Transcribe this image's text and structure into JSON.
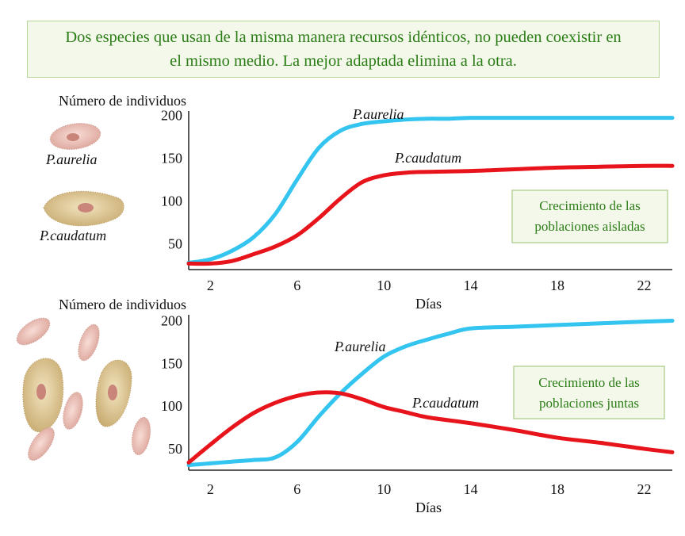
{
  "banner": {
    "line1": "Dos especies que usan de la misma manera recursos idénticos, no pueden coexistir en",
    "line2": "el mismo medio. La mejor adaptada elimina a la otra."
  },
  "colors": {
    "aurelia": "#33c4f0",
    "caudatum": "#e8141c",
    "frame": "#222222"
  },
  "illustrations": {
    "top_species": [
      "P.aurelia",
      "P.caudatum"
    ]
  },
  "chart_data": [
    {
      "type": "line",
      "ylabel": "Número de individuos",
      "xlabel": "Días",
      "x_ticks": [
        2,
        6,
        10,
        14,
        18,
        22
      ],
      "y_ticks": [
        50,
        100,
        150,
        200
      ],
      "xlim": [
        1,
        23.3
      ],
      "ylim": [
        20,
        205
      ],
      "legend_box": [
        "Crecimiento de las",
        "poblaciones aisladas"
      ],
      "series": [
        {
          "name": "P.aurelia",
          "x": [
            1,
            2,
            3,
            4,
            5,
            6,
            7,
            8,
            9,
            10,
            11,
            12,
            13,
            14,
            16,
            18,
            20,
            22,
            23.3
          ],
          "y": [
            28,
            32,
            42,
            58,
            85,
            125,
            162,
            182,
            190,
            193,
            195,
            196,
            196,
            197,
            197,
            197,
            197,
            197,
            197
          ]
        },
        {
          "name": "P.caudatum",
          "x": [
            1,
            2,
            3,
            4,
            5,
            6,
            7,
            8,
            9,
            10,
            11,
            12,
            14,
            16,
            18,
            20,
            22,
            23.3
          ],
          "y": [
            27,
            27,
            30,
            38,
            47,
            60,
            80,
            103,
            122,
            130,
            133,
            134,
            135,
            137,
            139,
            140,
            141,
            141
          ]
        }
      ]
    },
    {
      "type": "line",
      "ylabel": "Número de individuos",
      "xlabel": "Días",
      "x_ticks": [
        2,
        6,
        10,
        14,
        18,
        22
      ],
      "y_ticks": [
        50,
        100,
        150,
        200
      ],
      "xlim": [
        1,
        23.3
      ],
      "ylim": [
        25,
        207
      ],
      "legend_box": [
        "Crecimiento de las",
        "poblaciones juntas"
      ],
      "series": [
        {
          "name": "P.aurelia",
          "x": [
            1,
            2,
            3,
            4,
            5,
            6,
            7,
            8,
            9,
            10,
            11,
            12,
            13,
            14,
            16,
            18,
            20,
            22,
            23.3
          ],
          "y": [
            31,
            33,
            35,
            37,
            40,
            58,
            88,
            115,
            138,
            158,
            170,
            178,
            185,
            191,
            193,
            195,
            197,
            199,
            200
          ]
        },
        {
          "name": "P.caudatum",
          "x": [
            1,
            2,
            3,
            4,
            5,
            6,
            7,
            8,
            9,
            10,
            11,
            12,
            14,
            16,
            18,
            20,
            22,
            23.3
          ],
          "y": [
            34,
            55,
            75,
            92,
            104,
            112,
            116,
            115,
            108,
            99,
            93,
            87,
            80,
            72,
            63,
            57,
            50,
            46
          ]
        }
      ]
    }
  ]
}
